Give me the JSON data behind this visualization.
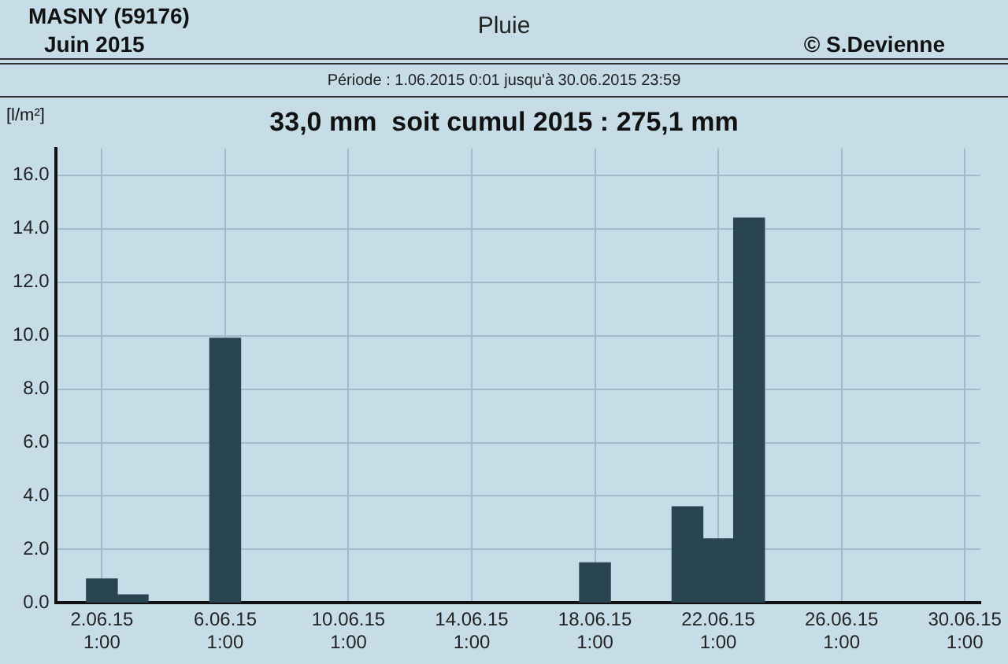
{
  "chart_data": {
    "type": "bar",
    "title": "Pluie",
    "subtitle": "33,0 mm  soit cumul 2015 : 275,1 mm",
    "ylabel": "[l/m²]",
    "annotations": [
      "MASNY (59176)",
      "Juin  2015",
      "© S.Devienne",
      "Période :  1.06.2015   0:01   jusqu'à  30.06.2015   23:59"
    ],
    "categories": [
      null,
      "2.06.15\n1:00",
      null,
      null,
      null,
      "6.06.15\n1:00",
      null,
      null,
      null,
      "10.06.15\n1:00",
      null,
      null,
      null,
      "14.06.15\n1:00",
      null,
      null,
      null,
      "18.06.15\n1:00",
      null,
      null,
      null,
      "22.06.15\n1:00",
      null,
      null,
      null,
      "26.06.15\n1:00",
      null,
      null,
      null,
      "30.06.15\n1:00"
    ],
    "values": [
      null,
      0.9,
      0.3,
      null,
      null,
      9.9,
      null,
      null,
      null,
      null,
      null,
      null,
      null,
      null,
      null,
      null,
      null,
      1.5,
      null,
      null,
      3.6,
      2.4,
      14.4,
      null,
      null,
      null,
      null,
      null,
      null,
      null
    ],
    "color": "#2a4552",
    "ylim": [
      0,
      17
    ],
    "yticks": [
      {
        "value": 0,
        "label": "0.0"
      },
      {
        "value": 2,
        "label": "2.0"
      },
      {
        "value": 4,
        "label": "4.0"
      },
      {
        "value": 6,
        "label": "6.0"
      },
      {
        "value": 8,
        "label": "8.0"
      },
      {
        "value": 10,
        "label": "10.0"
      },
      {
        "value": 12,
        "label": "12.0"
      },
      {
        "value": 14,
        "label": "14.0"
      },
      {
        "value": 16,
        "label": "16.0"
      }
    ],
    "grid": true
  }
}
